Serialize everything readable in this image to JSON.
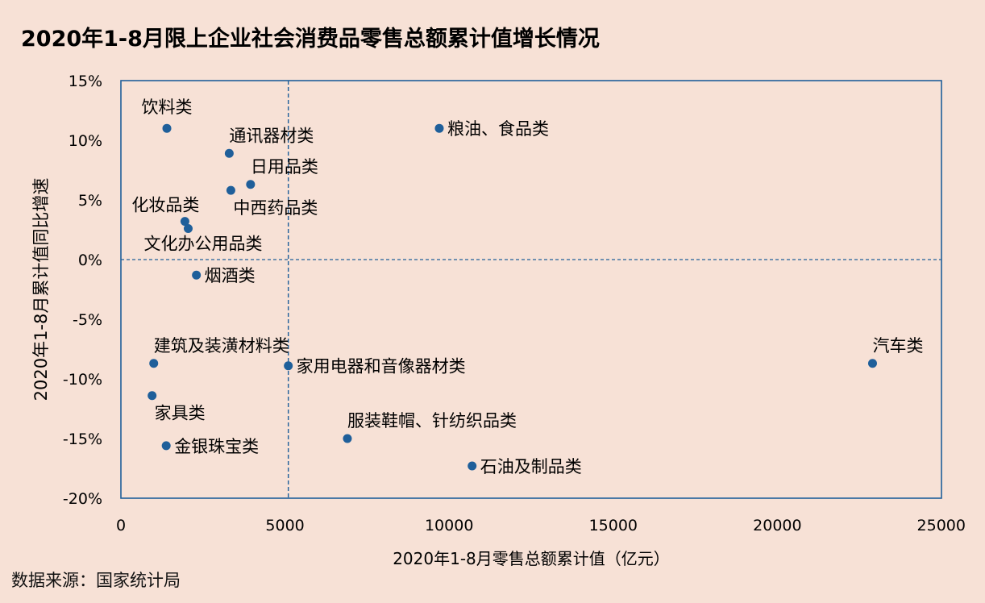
{
  "page": {
    "source_note": "数据来源：国家统计局"
  },
  "chart_data": {
    "type": "scatter",
    "title": "2020年1-8月限上企业社会消费品零售总额累计值增长情况",
    "xlabel": "2020年1-8月零售总额累计值（亿元）",
    "ylabel": "2020年1-8月累计值同比增速",
    "xlim": [
      0,
      25000
    ],
    "ylim": [
      -20,
      15
    ],
    "x_ticks": [
      0,
      5000,
      10000,
      15000,
      20000,
      25000
    ],
    "x_tick_labels": [
      "0",
      "5000",
      "10000",
      "15000",
      "20000",
      "25000"
    ],
    "y_ticks": [
      15,
      10,
      5,
      0,
      -5,
      -10,
      -15,
      -20
    ],
    "y_tick_labels": [
      "15%",
      "10%",
      "5%",
      "0%",
      "-5%",
      "-10%",
      "-15%",
      "-20%"
    ],
    "reference_lines": {
      "x": 5100,
      "y": 0
    },
    "grid": false,
    "legend": "none",
    "colors": {
      "point": "#1f5f9a",
      "frame": "#1f5f9a",
      "background": "#f7e1d6"
    },
    "points": [
      {
        "label": "饮料类",
        "x": 1400,
        "y": 11.0,
        "label_pos": "above"
      },
      {
        "label": "通讯器材类",
        "x": 3300,
        "y": 8.9,
        "label_pos": "above-right"
      },
      {
        "label": "日用品类",
        "x": 3950,
        "y": 6.3,
        "label_pos": "above-right"
      },
      {
        "label": "中西药品类",
        "x": 3350,
        "y": 5.8,
        "label_pos": "below-right"
      },
      {
        "label": "化妆品类",
        "x": 1950,
        "y": 3.2,
        "label_pos": "above-left"
      },
      {
        "label": "文化办公用品类",
        "x": 2050,
        "y": 2.6,
        "label_pos": "below"
      },
      {
        "label": "烟酒类",
        "x": 2300,
        "y": -1.3,
        "label_pos": "right"
      },
      {
        "label": "粮油、食品类",
        "x": 9700,
        "y": 11.0,
        "label_pos": "right"
      },
      {
        "label": "建筑及装潢材料类",
        "x": 1000,
        "y": -8.7,
        "label_pos": "above-right"
      },
      {
        "label": "家具类",
        "x": 950,
        "y": -11.4,
        "label_pos": "below-right"
      },
      {
        "label": "金银珠宝类",
        "x": 1380,
        "y": -15.6,
        "label_pos": "right"
      },
      {
        "label": "家用电器和音像器材类",
        "x": 5100,
        "y": -8.9,
        "label_pos": "right"
      },
      {
        "label": "服装鞋帽、针纺织品类",
        "x": 6900,
        "y": -15.0,
        "label_pos": "above-right"
      },
      {
        "label": "石油及制品类",
        "x": 10700,
        "y": -17.3,
        "label_pos": "right"
      },
      {
        "label": "汽车类",
        "x": 22900,
        "y": -8.7,
        "label_pos": "above-right"
      }
    ]
  }
}
